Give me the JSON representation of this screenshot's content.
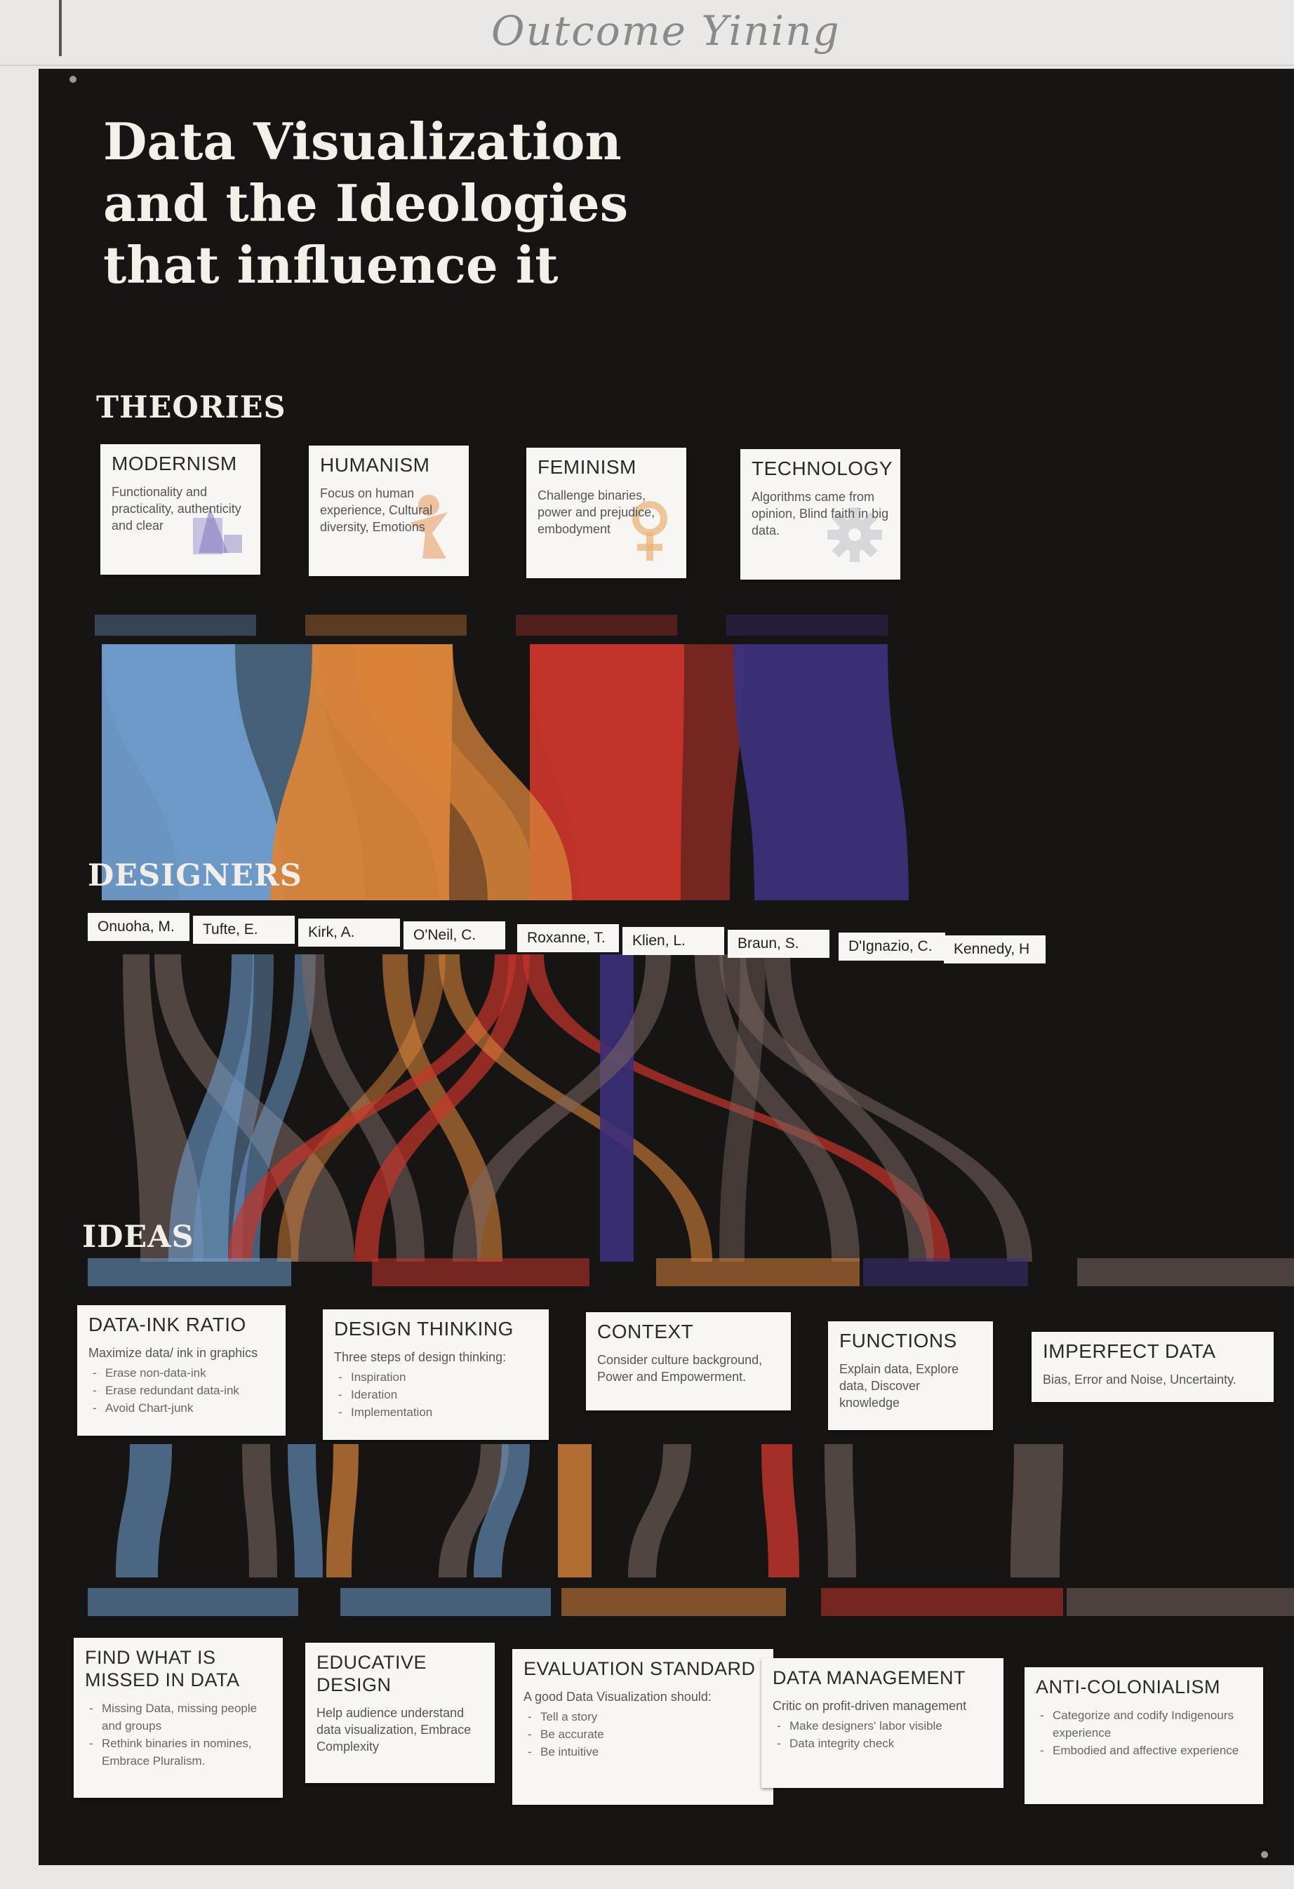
{
  "wall": {
    "handwriting": "Outcome Yining"
  },
  "poster": {
    "title_lines": [
      "Data Visualization",
      "and the Ideologies",
      "that influence it"
    ],
    "sections": {
      "theories": "THEORIES",
      "designers": "DESIGNERS",
      "ideas": "IDEAS"
    },
    "theories": [
      {
        "name": "MODERNISM",
        "desc": "Functionality and practicality, authenticity and clear",
        "color": "#6f9ccc",
        "icon": "geometric-shapes-icon"
      },
      {
        "name": "HUMANISM",
        "desc": "Focus on human experience, Cultural diversity, Emotions",
        "color": "#d9843a",
        "icon": "human-figure-icon"
      },
      {
        "name": "FEMINISM",
        "desc": "Challenge binaries, power and prejudice, embodyment",
        "color": "#c6352a",
        "icon": "female-symbol-icon"
      },
      {
        "name": "TECHNOLOGY",
        "desc": "Algorithms came from opinion, Blind faith in big data.",
        "color": "#3c2f7a",
        "icon": "gear-icon"
      }
    ],
    "designers": [
      "Onuoha, M.",
      "Tufte, E.",
      "Kirk, A.",
      "O'Neil, C.",
      "Roxanne, T.",
      "Klien, L.",
      "Braun, S.",
      "D'Ignazio, C.",
      "Kennedy, H"
    ],
    "ideas_row1": [
      {
        "name": "DATA-INK RATIO",
        "desc": "Maximize data/ ink in graphics",
        "bullets": [
          "Erase non-data-ink",
          "Erase redundant data-ink",
          "Avoid Chart-junk"
        ]
      },
      {
        "name": "DESIGN THINKING",
        "desc": "Three steps of design thinking:",
        "bullets": [
          "Inspiration",
          "Ideration",
          "Implementation"
        ]
      },
      {
        "name": "CONTEXT",
        "desc": "Consider culture background, Power and Empowerment.",
        "bullets": []
      },
      {
        "name": "FUNCTIONS",
        "desc": "Explain data, Explore data, Discover knowledge",
        "bullets": []
      },
      {
        "name": "IMPERFECT DATA",
        "desc": "Bias, Error and Noise, Uncertainty.",
        "bullets": []
      }
    ],
    "ideas_row2": [
      {
        "name": "FIND WHAT IS MISSED IN DATA",
        "desc": "",
        "bullets": [
          "Missing Data, missing people and groups",
          "Rethink binaries in nomines, Embrace Pluralism."
        ]
      },
      {
        "name": "EDUCATIVE DESIGN",
        "desc": "Help audience understand data visualization, Embrace Complexity",
        "bullets": []
      },
      {
        "name": "EVALUATION STANDARD",
        "desc": "A good Data Visualization should:",
        "bullets": [
          "Tell a story",
          "Be accurate",
          "Be intuitive"
        ]
      },
      {
        "name": "DATA MANAGEMENT",
        "desc": "Critic on profit-driven management",
        "bullets": [
          "Make designers' labor visible",
          "Data integrity check"
        ]
      },
      {
        "name": "ANTI-COLONIALISM",
        "desc": "",
        "bullets": [
          "Categorize and codify Indigenours experience",
          "Embodied and affective experience"
        ]
      }
    ],
    "flow_colors": {
      "modernism": "#6f9ccc",
      "humanism": "#d9843a",
      "feminism": "#c6352a",
      "technology": "#3c2f7a",
      "neutral": "#7a6660",
      "background": "#161514"
    }
  }
}
